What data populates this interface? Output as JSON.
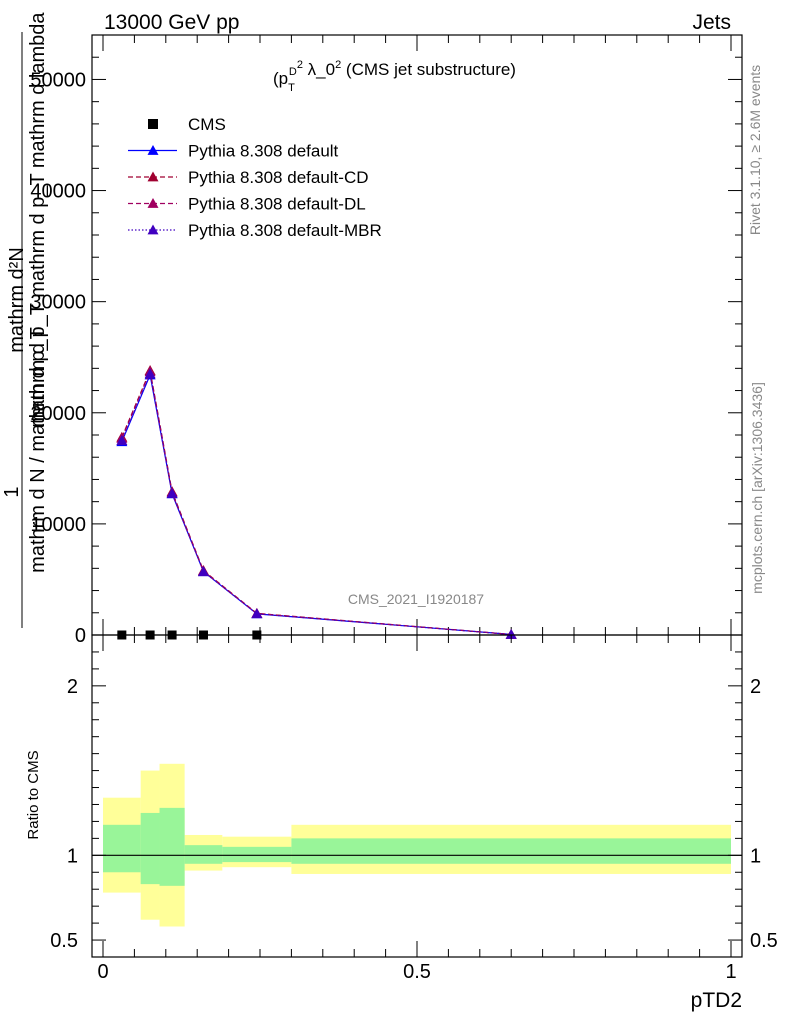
{
  "header": {
    "left": "13000 GeV pp",
    "right": "Jets"
  },
  "main_plot": {
    "title_prefix": "(p",
    "title_sub": "T",
    "title_sup": "D",
    "title_pow": "2",
    "title_rest": " λ_0",
    "title_pow2": "2",
    "title_suffix": " (CMS jet substructure)",
    "analysis_tag": "CMS_2021_I1920187",
    "ylabel_line1": "mathrm d²N",
    "ylabel_line2": "mathrm d p_T mathrm d p_T mathrm d lambda",
    "ylabel_one": "1",
    "ylabel_denom": "mathrm d N / mathrm d p_T"
  },
  "ratio_plot": {
    "ylabel": "Ratio to CMS"
  },
  "xaxis": {
    "label": "pTD2",
    "ticks": [
      "0",
      "0.5",
      "1"
    ]
  },
  "right_labels": {
    "rivet": "Rivet 3.1.10, ≥ 2.6M events",
    "site": "mcplots.cern.ch [arXiv:1306.3436]"
  },
  "legend": [
    {
      "name": "CMS",
      "color": "#000000",
      "style": "marker"
    },
    {
      "name": "Pythia 8.308 default",
      "color": "#0000ff",
      "style": "solid"
    },
    {
      "name": "Pythia 8.308 default-CD",
      "color": "#a00030",
      "style": "dashed"
    },
    {
      "name": "Pythia 8.308 default-DL",
      "color": "#a00060",
      "style": "dashed"
    },
    {
      "name": "Pythia 8.308 default-MBR",
      "color": "#4000c0",
      "style": "dotted"
    }
  ],
  "chart_data": [
    {
      "type": "line",
      "xlim": [
        -0.02,
        1.02
      ],
      "ylim": [
        0,
        54000
      ],
      "y_ticks": [
        0,
        10000,
        20000,
        30000,
        40000,
        50000
      ],
      "y_tick_labels": [
        "0",
        "10000",
        "20000",
        "30000",
        "40000",
        "50000"
      ],
      "series": [
        {
          "name": "CMS",
          "x": [
            0.03,
            0.075,
            0.11,
            0.16,
            0.245
          ],
          "y": [
            0,
            0,
            0,
            0,
            0
          ]
        },
        {
          "name": "Pythia 8.308 default",
          "x": [
            0.03,
            0.075,
            0.11,
            0.16,
            0.245,
            0.65
          ],
          "y": [
            17400,
            23400,
            12700,
            5700,
            1900,
            50
          ]
        },
        {
          "name": "Pythia 8.308 default-CD",
          "x": [
            0.03,
            0.075,
            0.11,
            0.16,
            0.245,
            0.65
          ],
          "y": [
            17800,
            23800,
            12900,
            5800,
            1950,
            50
          ]
        },
        {
          "name": "Pythia 8.308 default-DL",
          "x": [
            0.03,
            0.075,
            0.11,
            0.16,
            0.245,
            0.65
          ],
          "y": [
            17700,
            23700,
            12800,
            5750,
            1930,
            50
          ]
        },
        {
          "name": "Pythia 8.308 default-MBR",
          "x": [
            0.03,
            0.075,
            0.11,
            0.16,
            0.245,
            0.65
          ],
          "y": [
            17500,
            23500,
            12750,
            5700,
            1910,
            50
          ]
        }
      ]
    },
    {
      "type": "area",
      "ylim": [
        0.4,
        2.3
      ],
      "y_ticks": [
        0.5,
        1,
        2
      ],
      "y_tick_labels": [
        "0.5",
        "1",
        "2"
      ],
      "bins": [
        {
          "x0": 0.0,
          "x1": 0.06,
          "stat_lo": 0.9,
          "stat_hi": 1.18,
          "tot_lo": 0.78,
          "tot_hi": 1.34
        },
        {
          "x0": 0.06,
          "x1": 0.09,
          "stat_lo": 0.83,
          "stat_hi": 1.25,
          "tot_lo": 0.62,
          "tot_hi": 1.5
        },
        {
          "x0": 0.09,
          "x1": 0.13,
          "stat_lo": 0.82,
          "stat_hi": 1.28,
          "tot_lo": 0.58,
          "tot_hi": 1.54
        },
        {
          "x0": 0.13,
          "x1": 0.19,
          "stat_lo": 0.95,
          "stat_hi": 1.06,
          "tot_lo": 0.91,
          "tot_hi": 1.12
        },
        {
          "x0": 0.19,
          "x1": 0.3,
          "stat_lo": 0.96,
          "stat_hi": 1.05,
          "tot_lo": 0.93,
          "tot_hi": 1.11
        },
        {
          "x0": 0.3,
          "x1": 1.0,
          "stat_lo": 0.95,
          "stat_hi": 1.1,
          "tot_lo": 0.89,
          "tot_hi": 1.18
        }
      ],
      "reference_line": 1
    }
  ],
  "colors": {
    "stat_band": "#99f599",
    "total_band": "#ffff99",
    "axis": "#000000",
    "label_grey": "#888888"
  }
}
